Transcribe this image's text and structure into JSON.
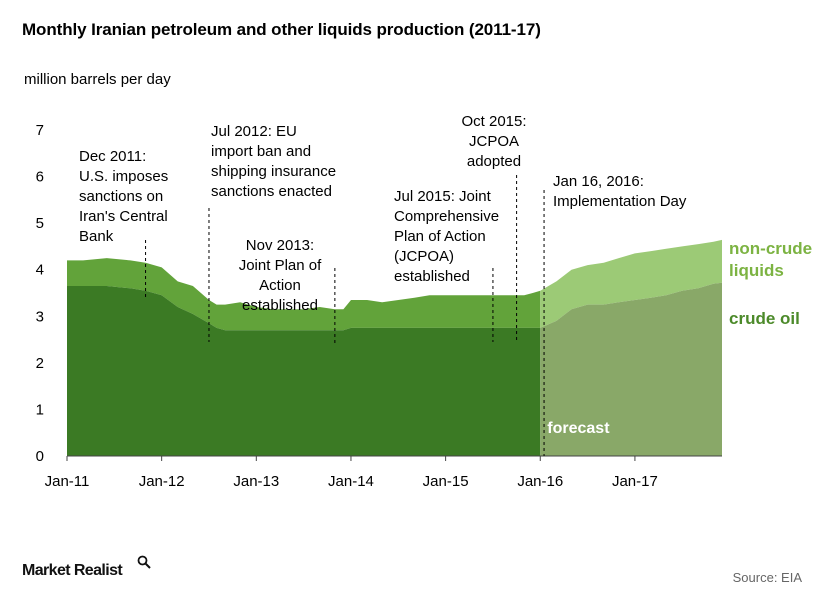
{
  "title": "Monthly Iranian petroleum and other liquids production (2011-17)",
  "units": "million barrels per day",
  "source": "Source: EIA",
  "logo": "Market Realist",
  "colors": {
    "crude": "#3b7a24",
    "noncrude": "#62a33a",
    "crude_forecast": "#89a868",
    "noncrude_forecast": "#9cca76",
    "legend_noncrude": "#7cb342",
    "legend_crude": "#4c8a2a"
  },
  "chart_data": {
    "type": "area",
    "stacked": true,
    "xlabel": "",
    "ylabel": "million barrels per day",
    "ylim": [
      0,
      7
    ],
    "yticks": [
      0,
      1,
      2,
      3,
      4,
      5,
      6,
      7
    ],
    "xlim": [
      2011.0,
      2017.92
    ],
    "xtick_labels": [
      {
        "x": 2011.0,
        "label": "Jan-11"
      },
      {
        "x": 2012.0,
        "label": "Jan-12"
      },
      {
        "x": 2013.0,
        "label": "Jan-13"
      },
      {
        "x": 2014.0,
        "label": "Jan-14"
      },
      {
        "x": 2015.0,
        "label": "Jan-15"
      },
      {
        "x": 2016.0,
        "label": "Jan-16"
      },
      {
        "x": 2017.0,
        "label": "Jan-17"
      }
    ],
    "forecast_start": 2016.0,
    "forecast_label": "forecast",
    "x": [
      2011.0,
      2011.17,
      2011.42,
      2011.67,
      2011.83,
      2012.0,
      2012.17,
      2012.33,
      2012.5,
      2012.58,
      2012.67,
      2012.83,
      2013.0,
      2013.17,
      2013.33,
      2013.5,
      2013.67,
      2013.83,
      2013.92,
      2014.0,
      2014.17,
      2014.33,
      2014.5,
      2014.67,
      2014.83,
      2015.0,
      2015.17,
      2015.33,
      2015.5,
      2015.67,
      2015.83,
      2015.92,
      2016.0,
      2016.17,
      2016.33,
      2016.5,
      2016.67,
      2016.83,
      2017.0,
      2017.17,
      2017.33,
      2017.5,
      2017.67,
      2017.83,
      2017.92
    ],
    "series": [
      {
        "name": "crude oil",
        "values": [
          3.65,
          3.65,
          3.65,
          3.6,
          3.55,
          3.45,
          3.2,
          3.05,
          2.85,
          2.75,
          2.7,
          2.7,
          2.7,
          2.7,
          2.7,
          2.7,
          2.7,
          2.7,
          2.7,
          2.75,
          2.75,
          2.75,
          2.75,
          2.75,
          2.75,
          2.75,
          2.75,
          2.75,
          2.75,
          2.75,
          2.75,
          2.75,
          2.75,
          2.9,
          3.15,
          3.25,
          3.25,
          3.3,
          3.35,
          3.4,
          3.45,
          3.55,
          3.6,
          3.7,
          3.72
        ]
      },
      {
        "name": "non-crude liquids",
        "values": [
          0.55,
          0.55,
          0.6,
          0.6,
          0.6,
          0.6,
          0.55,
          0.6,
          0.5,
          0.5,
          0.55,
          0.6,
          0.5,
          0.45,
          0.45,
          0.45,
          0.5,
          0.45,
          0.45,
          0.6,
          0.6,
          0.55,
          0.6,
          0.65,
          0.7,
          0.7,
          0.7,
          0.7,
          0.7,
          0.7,
          0.7,
          0.75,
          0.8,
          0.85,
          0.85,
          0.85,
          0.9,
          0.95,
          1.0,
          1.0,
          1.0,
          0.95,
          0.95,
          0.9,
          0.92
        ]
      }
    ],
    "legend": [
      {
        "label": "non-crude liquids",
        "lines": [
          "non-crude",
          "liquids"
        ],
        "color_key": "legend_noncrude"
      },
      {
        "label": "crude oil",
        "lines": [
          "crude oil"
        ],
        "color_key": "legend_crude"
      }
    ],
    "annotations": [
      {
        "x": 2011.83,
        "lines": [
          "Dec 2011:",
          "U.S. imposes",
          "sanctions on",
          "Iran's Central",
          "Bank"
        ]
      },
      {
        "x": 2012.5,
        "lines": [
          "Jul 2012: EU",
          "import ban and",
          "shipping insurance",
          "sanctions enacted"
        ]
      },
      {
        "x": 2013.83,
        "lines": [
          "Nov 2013:",
          "Joint Plan of",
          "Action",
          "established"
        ]
      },
      {
        "x": 2015.5,
        "lines": [
          "Jul 2015: Joint",
          "Comprehensive",
          "Plan of Action",
          "(JCPOA)",
          "established"
        ]
      },
      {
        "x": 2015.75,
        "lines": [
          "Oct 2015:",
          "JCPOA",
          "adopted"
        ]
      },
      {
        "x": 2016.04,
        "lines": [
          "Jan 16, 2016:",
          "Implementation Day"
        ]
      }
    ]
  }
}
